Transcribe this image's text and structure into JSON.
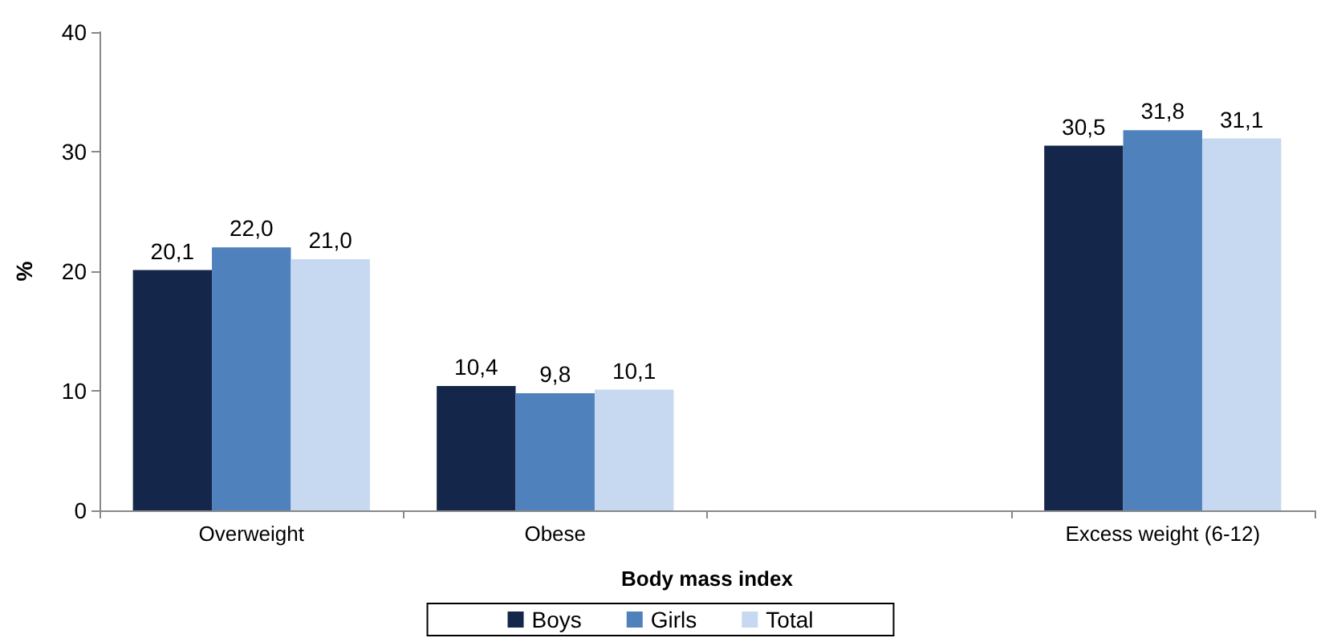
{
  "chart_data": {
    "type": "bar",
    "xlabel": "Body mass index",
    "ylabel": "%",
    "categories": [
      "Overweight",
      "Obese",
      null,
      "Excess weight (6-12)"
    ],
    "series": [
      {
        "name": "Boys",
        "color": "#14274a",
        "values": [
          20.1,
          10.4,
          null,
          30.5
        ],
        "value_labels": [
          "20,1",
          "10,4",
          null,
          "30,5"
        ]
      },
      {
        "name": "Girls",
        "color": "#4f81bd",
        "values": [
          22.0,
          9.8,
          null,
          31.8
        ],
        "value_labels": [
          "22,0",
          "9,8",
          null,
          "31,8"
        ]
      },
      {
        "name": "Total",
        "color": "#c6d9f1",
        "values": [
          21.0,
          10.1,
          null,
          31.1
        ],
        "value_labels": [
          "21,0",
          "10,1",
          null,
          "31,1"
        ]
      }
    ],
    "ylim": [
      0,
      40
    ],
    "yticks": [
      0,
      10,
      20,
      30,
      40
    ],
    "grid": false,
    "legend": "bottom"
  }
}
